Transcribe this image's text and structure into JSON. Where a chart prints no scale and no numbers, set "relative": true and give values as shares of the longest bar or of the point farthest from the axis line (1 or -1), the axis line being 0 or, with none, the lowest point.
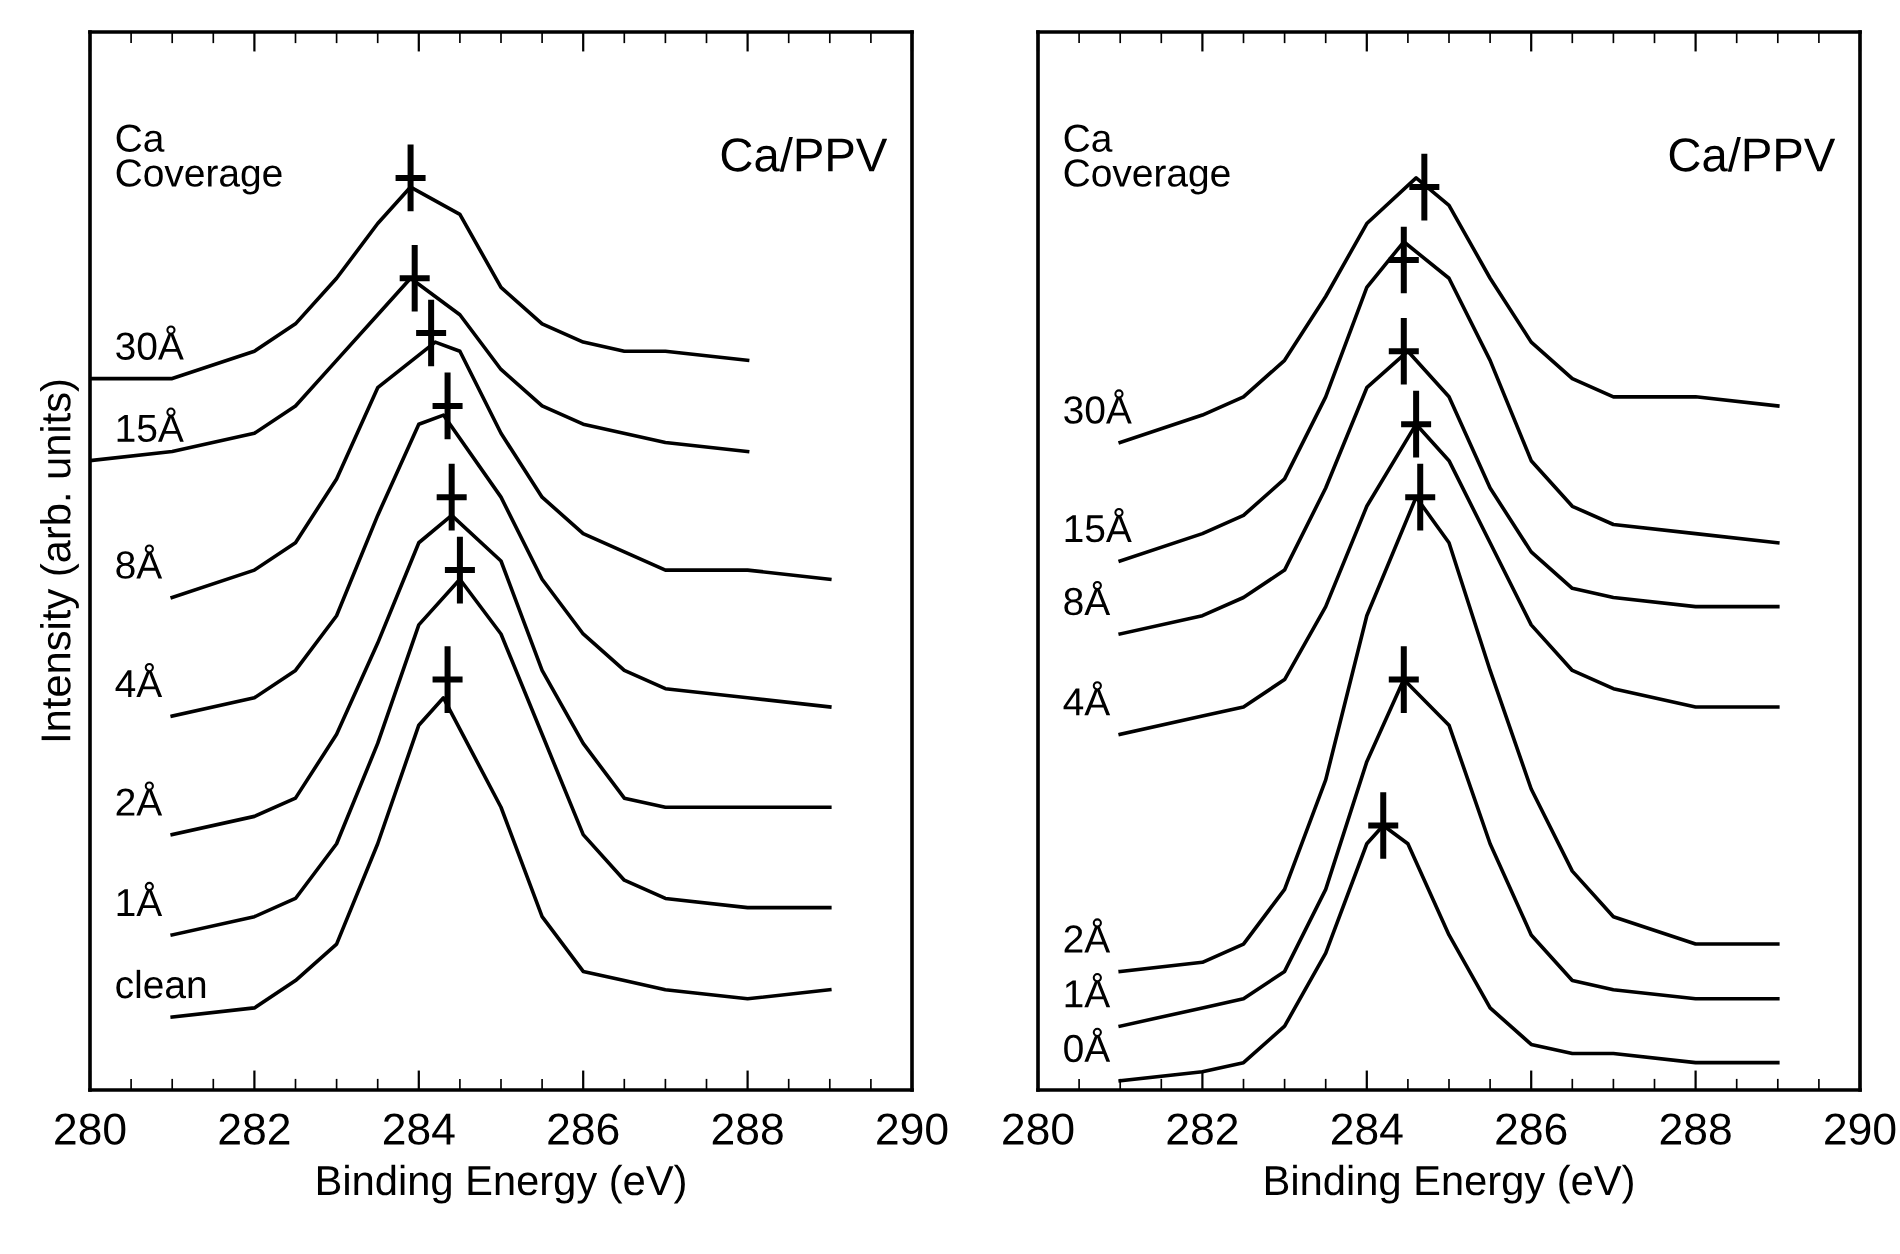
{
  "chart_data": [
    {
      "type": "line",
      "xlabel": "Binding Energy (eV)",
      "ylabel": "Intensity (arb. units)",
      "xlim": [
        280,
        290
      ],
      "xticks": [
        280,
        282,
        284,
        286,
        288,
        290
      ],
      "relative": true,
      "annotations": [
        "Ca\nCoverage",
        "Ca/PPV"
      ],
      "series": [
        {
          "name": "30Å",
          "color": "#000000",
          "x": [
            280,
            281,
            282,
            282.5,
            283,
            283.5,
            283.9,
            284.5,
            285,
            285.5,
            286,
            286.5,
            287,
            288
          ],
          "values": [
            0.78,
            0.78,
            0.81,
            0.84,
            0.89,
            0.95,
            0.99,
            0.96,
            0.88,
            0.84,
            0.82,
            0.81,
            0.81,
            0.8
          ]
        },
        {
          "name": "15Å",
          "color": "#000000",
          "x": [
            280,
            281,
            282,
            282.5,
            283,
            283.5,
            283.9,
            284.5,
            285,
            285.5,
            286,
            287,
            288
          ],
          "values": [
            0.69,
            0.7,
            0.72,
            0.75,
            0.8,
            0.85,
            0.89,
            0.85,
            0.79,
            0.75,
            0.73,
            0.71,
            0.7
          ]
        },
        {
          "name": "8Å",
          "color": "#000000",
          "x": [
            281,
            282,
            282.5,
            283,
            283.5,
            284.2,
            284.5,
            285,
            285.5,
            286,
            286.5,
            287,
            288,
            289
          ],
          "values": [
            0.54,
            0.57,
            0.6,
            0.67,
            0.77,
            0.82,
            0.81,
            0.72,
            0.65,
            0.61,
            0.59,
            0.57,
            0.57,
            0.56
          ]
        },
        {
          "name": "4Å",
          "color": "#000000",
          "x": [
            281,
            282,
            282.5,
            283,
            283.5,
            284,
            284.3,
            285,
            285.5,
            286,
            286.5,
            287,
            288,
            289
          ],
          "values": [
            0.41,
            0.43,
            0.46,
            0.52,
            0.63,
            0.73,
            0.74,
            0.65,
            0.56,
            0.5,
            0.46,
            0.44,
            0.43,
            0.42
          ]
        },
        {
          "name": "2Å",
          "color": "#000000",
          "x": [
            281,
            282,
            282.5,
            283,
            283.5,
            284,
            284.4,
            285,
            285.5,
            286,
            286.5,
            287,
            288,
            289
          ],
          "values": [
            0.28,
            0.3,
            0.32,
            0.39,
            0.49,
            0.6,
            0.63,
            0.58,
            0.46,
            0.38,
            0.32,
            0.31,
            0.31,
            0.31
          ]
        },
        {
          "name": "1Å",
          "color": "#000000",
          "x": [
            281,
            282,
            282.5,
            283,
            283.5,
            284,
            284.5,
            285,
            285.5,
            286,
            286.5,
            287,
            288,
            289
          ],
          "values": [
            0.17,
            0.19,
            0.21,
            0.27,
            0.38,
            0.51,
            0.56,
            0.5,
            0.39,
            0.28,
            0.23,
            0.21,
            0.2,
            0.2
          ]
        },
        {
          "name": "clean",
          "color": "#000000",
          "x": [
            281,
            282,
            282.5,
            283,
            283.5,
            284,
            284.3,
            285,
            285.5,
            286,
            286.5,
            287,
            288,
            289
          ],
          "values": [
            0.08,
            0.09,
            0.12,
            0.16,
            0.27,
            0.4,
            0.43,
            0.31,
            0.19,
            0.13,
            0.12,
            0.11,
            0.1,
            0.11
          ]
        },
        {
          "type": "scatter",
          "marker": "cross",
          "color": "#000000",
          "x": [
            283.9,
            283.95,
            284.15,
            284.35,
            284.4,
            284.5,
            284.35
          ],
          "values": [
            1.0,
            0.89,
            0.83,
            0.75,
            0.65,
            0.57,
            0.45
          ]
        }
      ]
    },
    {
      "type": "line",
      "xlabel": "Binding Energy (eV)",
      "xlim": [
        280,
        290
      ],
      "xticks": [
        280,
        282,
        284,
        286,
        288,
        290
      ],
      "relative": true,
      "annotations": [
        "Ca\nCoverage",
        "Ca/PPV"
      ],
      "series": [
        {
          "name": "30Å",
          "color": "#000000",
          "x": [
            281,
            282,
            282.5,
            283,
            283.5,
            284,
            284.6,
            285,
            285.5,
            286,
            286.5,
            287,
            288,
            289
          ],
          "values": [
            0.71,
            0.74,
            0.76,
            0.8,
            0.87,
            0.95,
            1.0,
            0.97,
            0.89,
            0.82,
            0.78,
            0.76,
            0.76,
            0.75
          ]
        },
        {
          "name": "15Å",
          "color": "#000000",
          "x": [
            281,
            282,
            282.5,
            283,
            283.5,
            284,
            284.45,
            285,
            285.5,
            286,
            286.5,
            287,
            288,
            289
          ],
          "values": [
            0.58,
            0.61,
            0.63,
            0.67,
            0.76,
            0.88,
            0.93,
            0.89,
            0.8,
            0.69,
            0.64,
            0.62,
            0.61,
            0.6
          ]
        },
        {
          "name": "8Å",
          "color": "#000000",
          "x": [
            281,
            282,
            282.5,
            283,
            283.5,
            284,
            284.5,
            285,
            285.5,
            286,
            286.5,
            287,
            288,
            289
          ],
          "values": [
            0.5,
            0.52,
            0.54,
            0.57,
            0.66,
            0.77,
            0.81,
            0.76,
            0.66,
            0.59,
            0.55,
            0.54,
            0.53,
            0.53
          ]
        },
        {
          "name": "4Å",
          "color": "#000000",
          "x": [
            281,
            282,
            282.5,
            283,
            283.5,
            284,
            284.6,
            285,
            285.5,
            286,
            286.5,
            287,
            288,
            289
          ],
          "values": [
            0.39,
            0.41,
            0.42,
            0.45,
            0.53,
            0.64,
            0.73,
            0.69,
            0.6,
            0.51,
            0.46,
            0.44,
            0.42,
            0.42
          ]
        },
        {
          "name": "2Å",
          "color": "#000000",
          "x": [
            281,
            282,
            282.5,
            283,
            283.5,
            284,
            284.6,
            285,
            285.5,
            286,
            286.5,
            287,
            288,
            289
          ],
          "values": [
            0.13,
            0.14,
            0.16,
            0.22,
            0.34,
            0.52,
            0.65,
            0.6,
            0.46,
            0.33,
            0.24,
            0.19,
            0.16,
            0.16
          ]
        },
        {
          "name": "1Å",
          "color": "#000000",
          "x": [
            281,
            282,
            282.5,
            283,
            283.5,
            284,
            284.45,
            285,
            285.5,
            286,
            286.5,
            287,
            288,
            289
          ],
          "values": [
            0.07,
            0.09,
            0.1,
            0.13,
            0.22,
            0.36,
            0.45,
            0.4,
            0.27,
            0.17,
            0.12,
            0.11,
            0.1,
            0.1
          ]
        },
        {
          "name": "0Å",
          "color": "#000000",
          "x": [
            281,
            282,
            282.5,
            283,
            283.5,
            284,
            284.2,
            284.5,
            285,
            285.5,
            286,
            286.5,
            287,
            288,
            289
          ],
          "values": [
            0.01,
            0.02,
            0.03,
            0.07,
            0.15,
            0.27,
            0.29,
            0.27,
            0.17,
            0.09,
            0.05,
            0.04,
            0.04,
            0.03,
            0.03
          ]
        },
        {
          "type": "scatter",
          "marker": "cross",
          "color": "#000000",
          "x": [
            284.7,
            284.45,
            284.45,
            284.6,
            284.65,
            284.45,
            284.2
          ],
          "values": [
            0.99,
            0.91,
            0.81,
            0.73,
            0.65,
            0.45,
            0.29
          ]
        }
      ]
    }
  ]
}
